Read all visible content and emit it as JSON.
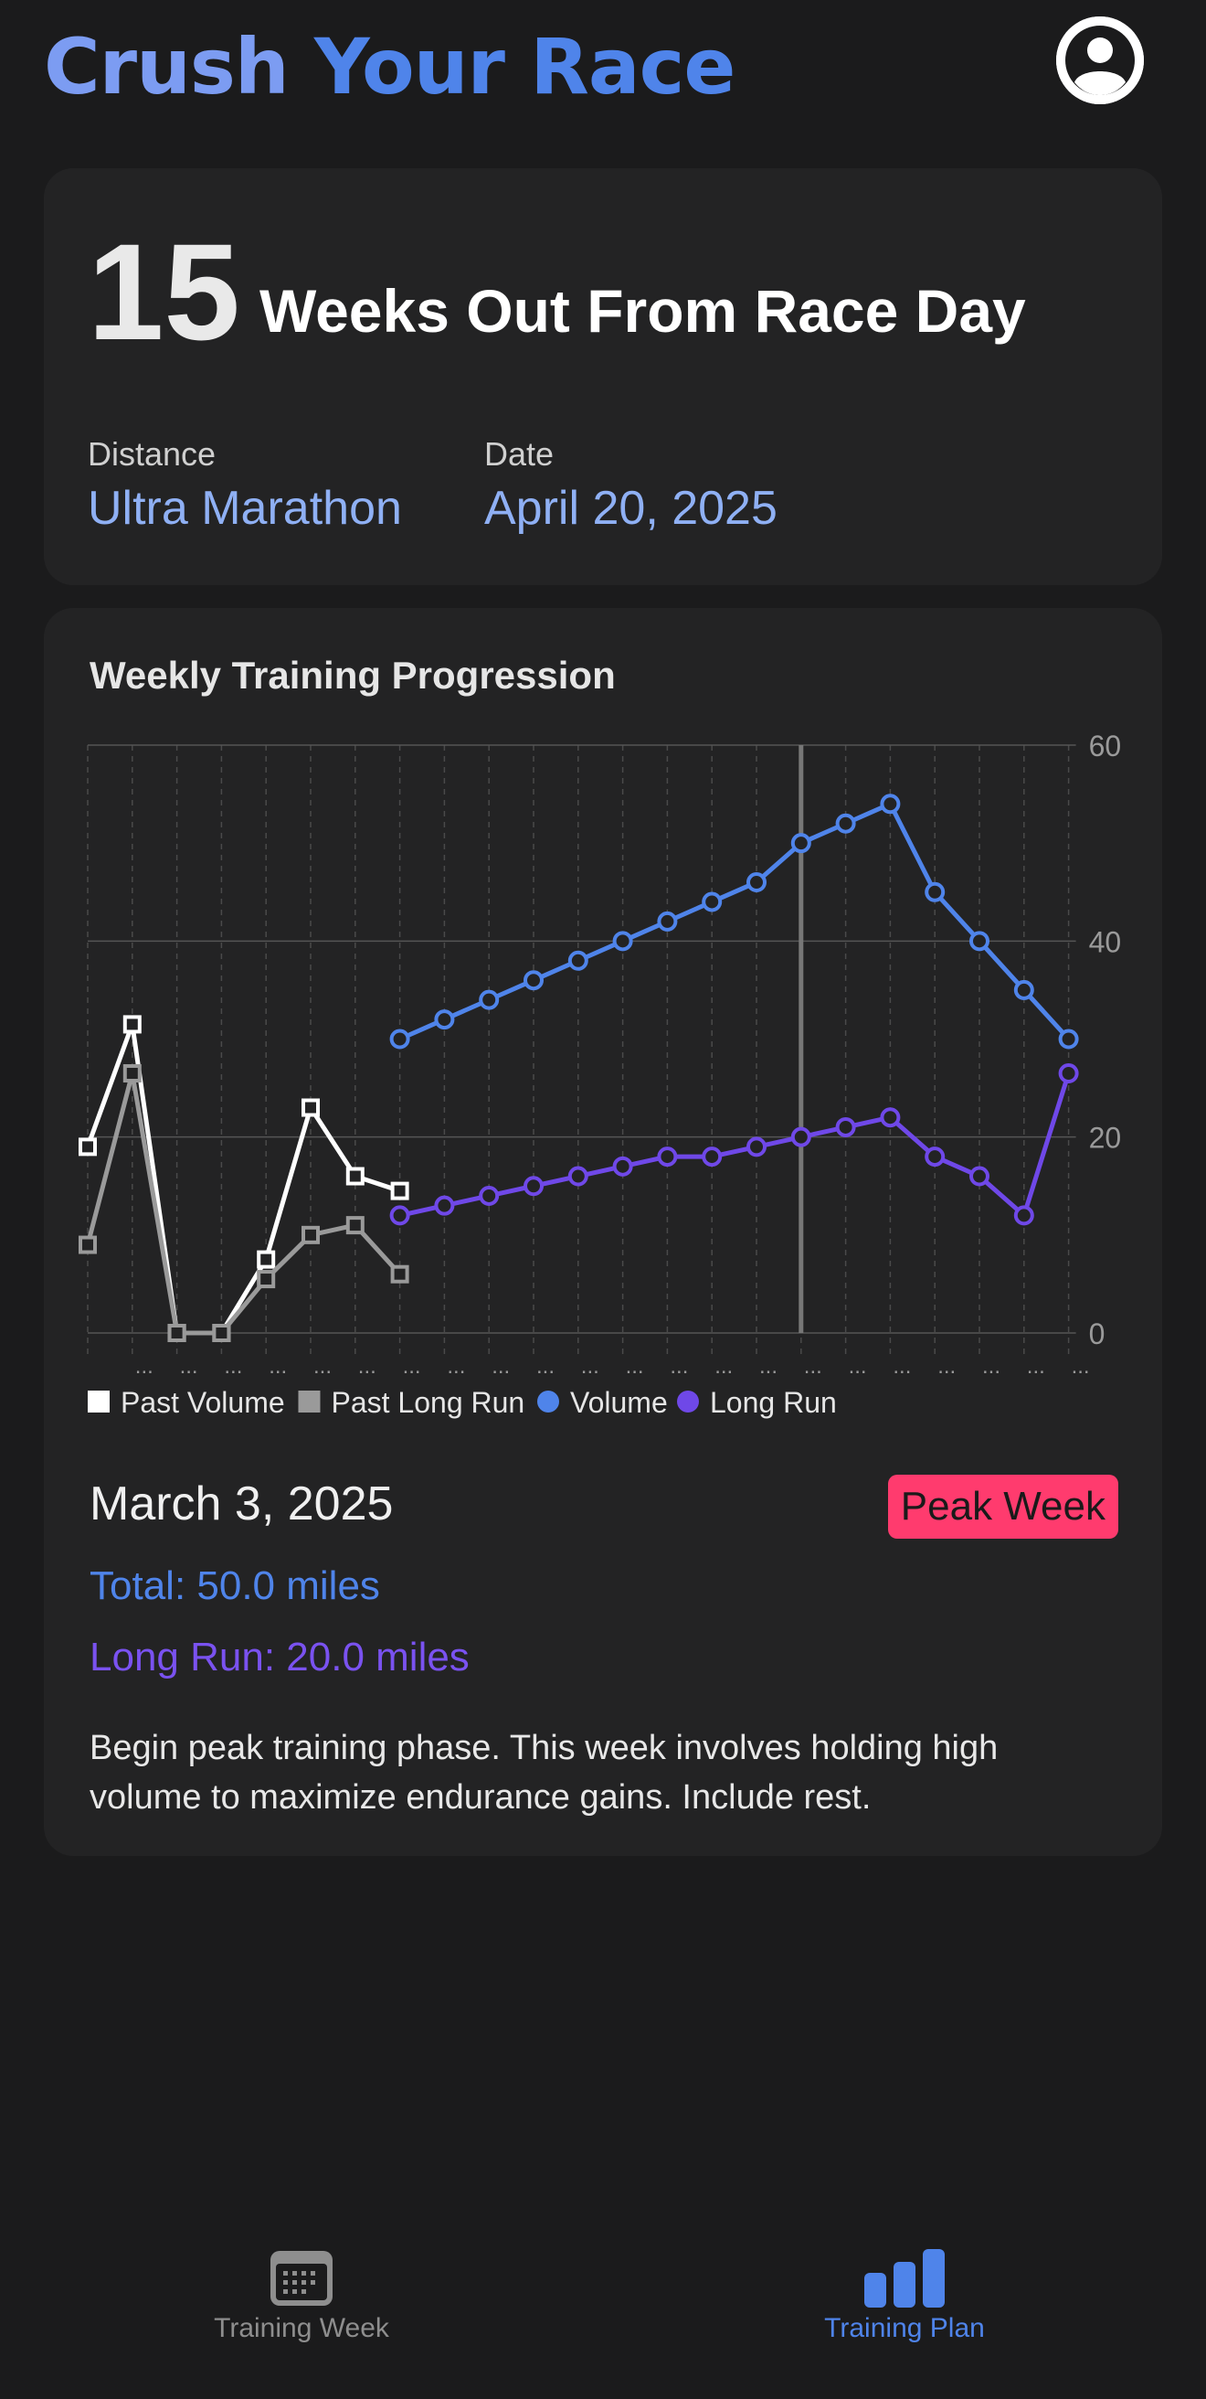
{
  "app": {
    "title_part1": "Crush",
    "title_part2": "Your Race"
  },
  "header": {
    "avatar_icon": "person-circle-icon"
  },
  "race": {
    "weeks_out": "15",
    "weeks_out_label": "Weeks Out From Race Day",
    "distance_label": "Distance",
    "distance_value": "Ultra Marathon",
    "date_label": "Date",
    "date_value": "April 20, 2025"
  },
  "chart_card": {
    "title": "Weekly Training Progression",
    "selected_date": "March 3, 2025",
    "badge": "Peak Week",
    "total_text": "Total: 50.0 miles",
    "long_run_text": "Long Run: 20.0 miles",
    "description": "Begin peak training phase. This week involves holding high volume to maximize endurance gains. Include rest."
  },
  "chart_data": {
    "type": "line",
    "title": "Weekly Training Progression",
    "xlabel": "",
    "ylabel": "",
    "ylim": [
      0,
      60
    ],
    "yticks": [
      0,
      20,
      40,
      60
    ],
    "x_weeks": 23,
    "x_tick_label": "...",
    "grid": true,
    "legend_position": "bottom",
    "selected_week": 16,
    "series": [
      {
        "name": "Past Volume",
        "marker": "square",
        "color": "#ffffff",
        "x": [
          0,
          1,
          2,
          3,
          4,
          5,
          6,
          7
        ],
        "values": [
          19,
          31.5,
          0,
          0,
          7.5,
          23,
          16,
          14.5
        ]
      },
      {
        "name": "Past Long Run",
        "marker": "square",
        "color": "#9a9a9a",
        "x": [
          0,
          1,
          2,
          3,
          4,
          5,
          6,
          7
        ],
        "values": [
          9,
          26.5,
          0,
          0,
          5.5,
          10,
          11,
          6
        ]
      },
      {
        "name": "Volume",
        "marker": "circle",
        "color": "#4f84ea",
        "x": [
          7,
          8,
          9,
          10,
          11,
          12,
          13,
          14,
          15,
          16,
          17,
          18,
          19,
          20,
          21,
          22
        ],
        "values": [
          30,
          32,
          34,
          36,
          38,
          40,
          42,
          44,
          46,
          50,
          52,
          54,
          45,
          40,
          35,
          30
        ]
      },
      {
        "name": "Long Run",
        "marker": "circle",
        "color": "#6f48e8",
        "x": [
          7,
          8,
          9,
          10,
          11,
          12,
          13,
          14,
          15,
          16,
          17,
          18,
          19,
          20,
          21,
          22
        ],
        "values": [
          12,
          13,
          14,
          15,
          16,
          17,
          18,
          18,
          19,
          20,
          21,
          22,
          18,
          16,
          12,
          26.5
        ]
      }
    ]
  },
  "tabbar": {
    "tabs": [
      {
        "label": "Training Week",
        "icon": "calendar-icon",
        "active": false,
        "color": "#8e8e8e"
      },
      {
        "label": "Training Plan",
        "icon": "bar-chart-icon",
        "active": true,
        "color": "#4f84ea"
      }
    ]
  }
}
